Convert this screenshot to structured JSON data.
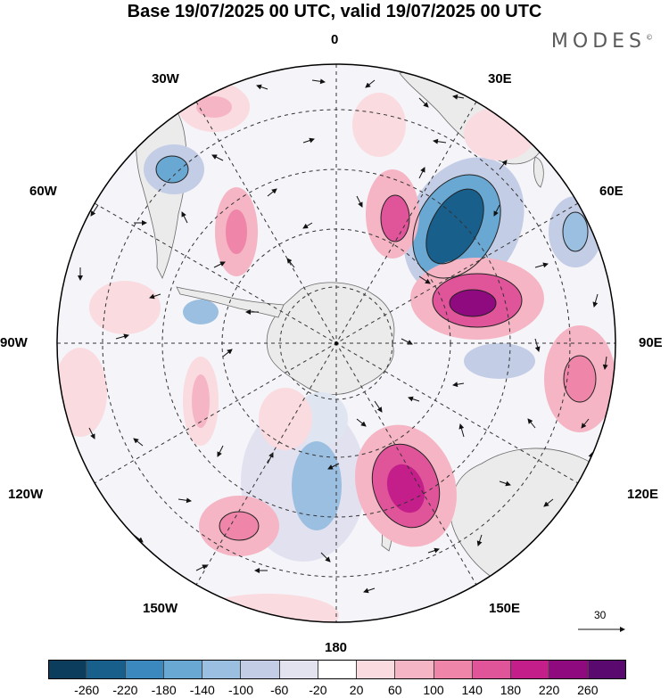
{
  "title": "Base 19/07/2025 00 UTC, valid 19/07/2025 00 UTC",
  "brand": "MODES",
  "brand_mark": "©",
  "map": {
    "projection": "south-polar-stereographic",
    "lon_labels": {
      "lon_0": "0",
      "lon_30e": "30E",
      "lon_60e": "60E",
      "lon_90e": "90E",
      "lon_120e": "120E",
      "lon_150e": "150E",
      "lon_180": "180",
      "lon_150w": "150W",
      "lon_120w": "120W",
      "lon_90w": "90W",
      "lon_60w": "60W",
      "lon_30w": "30W"
    },
    "reference_vector": "30"
  },
  "colorbar": {
    "colors": [
      "#0d3d5c",
      "#185f8c",
      "#3b88bf",
      "#6aa8d4",
      "#9bbfe0",
      "#c4cde6",
      "#e3e3f0",
      "#ffffff",
      "#fadbe0",
      "#f5b5c4",
      "#ef86aa",
      "#e0559a",
      "#c41e8a",
      "#8f0a7e",
      "#5a0a6e"
    ],
    "ticks": [
      "-260",
      "-220",
      "-180",
      "-140",
      "-100",
      "-60",
      "-20",
      "20",
      "60",
      "100",
      "140",
      "180",
      "220",
      "260"
    ]
  },
  "colors": {
    "land": "#ebebeb",
    "coast": "#6a6a6a",
    "grid": "#333333"
  }
}
